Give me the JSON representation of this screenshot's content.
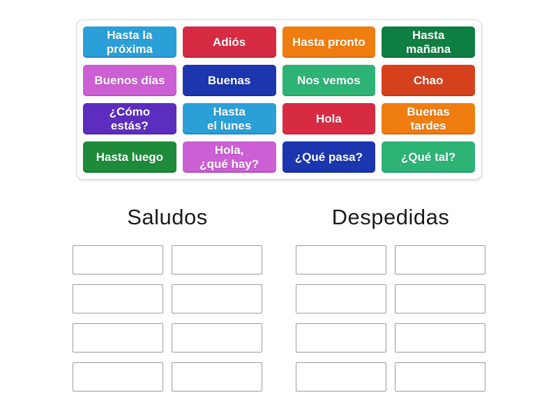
{
  "activity": {
    "type": "group-sort",
    "board": {
      "tiles": [
        {
          "label": "Hasta la\npróxima",
          "color": "#2a9fd8"
        },
        {
          "label": "Adiós",
          "color": "#d62b42"
        },
        {
          "label": "Hasta pronto",
          "color": "#ef7d10"
        },
        {
          "label": "Hasta\nmañana",
          "color": "#0e7e41"
        },
        {
          "label": "Buenos días",
          "color": "#cc5fd4"
        },
        {
          "label": "Buenas",
          "color": "#1c36b0"
        },
        {
          "label": "Nos vemos",
          "color": "#2eb377"
        },
        {
          "label": "Chao",
          "color": "#d6411d"
        },
        {
          "label": "¿Cómo\nestás?",
          "color": "#5c2dbe"
        },
        {
          "label": "Hasta\nel lunes",
          "color": "#2a9fd8"
        },
        {
          "label": "Hola",
          "color": "#d62b42"
        },
        {
          "label": "Buenas\ntardes",
          "color": "#ef7d10"
        },
        {
          "label": "Hasta luego",
          "color": "#1d8b3a"
        },
        {
          "label": "Hola,\n¿qué hay?",
          "color": "#cc5fd4"
        },
        {
          "label": "¿Qué pasa?",
          "color": "#1c36b0"
        },
        {
          "label": "¿Qué tal?",
          "color": "#2eb377"
        }
      ]
    },
    "groups": [
      {
        "title": "Saludos",
        "empty_slots": 8
      },
      {
        "title": "Despedidas",
        "empty_slots": 8
      }
    ]
  },
  "colors": {
    "tile_text": "#ffffff",
    "board_border": "#d6d6d6",
    "slot_border": "#9b9b9b",
    "header_text": "#1b1b1b",
    "page_background": "#ffffff"
  }
}
